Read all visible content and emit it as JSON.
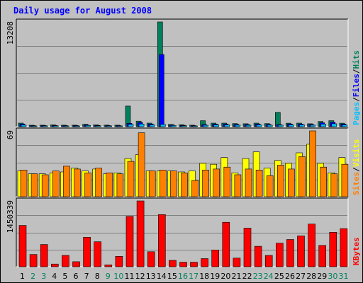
{
  "chart_data": {
    "type": "bar",
    "title": "Daily usage for August 2008",
    "categories": [
      "1",
      "2",
      "3",
      "4",
      "5",
      "6",
      "7",
      "8",
      "9",
      "10",
      "11",
      "12",
      "13",
      "14",
      "15",
      "16",
      "17",
      "18",
      "19",
      "20",
      "21",
      "22",
      "23",
      "24",
      "25",
      "26",
      "27",
      "28",
      "29",
      "30",
      "31"
    ],
    "weekend_days": [
      "2",
      "3",
      "9",
      "10",
      "16",
      "17",
      "23",
      "24",
      "30",
      "31"
    ],
    "colors": {
      "hits": "#00805c",
      "files": "#0000ff",
      "pages": "#00c0ff",
      "visits": "#ffff00",
      "sites": "#ff8000",
      "kbytes": "#ff0000",
      "weekday_label": "#000000",
      "weekend_label": "#00805c",
      "title": "#0000ff"
    },
    "panels": [
      {
        "name": "hits-files-pages",
        "ymax_label": "13208",
        "ylim": [
          0,
          13208
        ],
        "legend": [
          {
            "key": "pages",
            "label": "Pages",
            "color": "#00c0ff"
          },
          {
            "key": "files",
            "label": "Files",
            "color": "#0000ff"
          },
          {
            "key": "hits",
            "label": "Hits",
            "color": "#00805c"
          }
        ],
        "series": [
          {
            "name": "Hits",
            "key": "hits",
            "values": [
              450,
              180,
              190,
              220,
              190,
              190,
              300,
              220,
              200,
              190,
              2600,
              700,
              450,
              13208,
              280,
              240,
              190,
              750,
              450,
              450,
              380,
              370,
              450,
              380,
              1800,
              440,
              450,
              370,
              650,
              750,
              440
            ]
          },
          {
            "name": "Files",
            "key": "files",
            "values": [
              330,
              130,
              140,
              160,
              130,
              140,
              220,
              160,
              140,
              130,
              420,
              520,
              330,
              9100,
              200,
              170,
              130,
              260,
              330,
              330,
              280,
              270,
              330,
              280,
              260,
              320,
              330,
              270,
              480,
              550,
              320
            ]
          },
          {
            "name": "Pages",
            "key": "pages",
            "values": [
              200,
              90,
              100,
              110,
              90,
              90,
              150,
              110,
              100,
              90,
              280,
              330,
              220,
              280,
              140,
              110,
              90,
              180,
              220,
              220,
              190,
              180,
              220,
              190,
              190,
              210,
              220,
              190,
              320,
              370,
              210
            ]
          }
        ]
      },
      {
        "name": "visits-sites",
        "ymax_label": "69",
        "ylim": [
          0,
          69
        ],
        "legend": [
          {
            "key": "sites",
            "label": "Sites",
            "color": "#ff8000"
          },
          {
            "key": "visits",
            "label": "Visits",
            "color": "#ffff00"
          }
        ],
        "series": [
          {
            "name": "Visits",
            "key": "visits",
            "values": [
              27,
              24,
              24,
              25,
              26,
              30,
              27,
              29,
              24,
              25,
              40,
              44,
              27,
              27,
              27,
              26,
              27,
              35,
              34,
              41,
              25,
              40,
              47,
              30,
              38,
              35,
              46,
              55,
              35,
              25,
              41
            ]
          },
          {
            "name": "Sites",
            "key": "sites",
            "values": [
              28,
              24,
              23,
              27,
              32,
              29,
              25,
              30,
              25,
              24,
              37,
              67,
              27,
              28,
              27,
              25,
              17,
              28,
              29,
              31,
              23,
              29,
              28,
              22,
              33,
              29,
              42,
              69,
              31,
              24,
              34
            ]
          }
        ]
      },
      {
        "name": "kbytes",
        "ymax_label": "1450339",
        "ylim": [
          0,
          1450339
        ],
        "legend": [
          {
            "key": "kbytes",
            "label": "KBytes",
            "color": "#ff0000"
          }
        ],
        "series": [
          {
            "name": "KBytes",
            "key": "kbytes",
            "values": [
              910000,
              270000,
              490000,
              60000,
              250000,
              110000,
              650000,
              550000,
              40000,
              230000,
              1110000,
              1450339,
              330000,
              1150000,
              140000,
              100000,
              100000,
              180000,
              370000,
              980000,
              190000,
              850000,
              450000,
              250000,
              520000,
              600000,
              680000,
              940000,
              470000,
              760000,
              840000
            ]
          }
        ]
      }
    ]
  }
}
